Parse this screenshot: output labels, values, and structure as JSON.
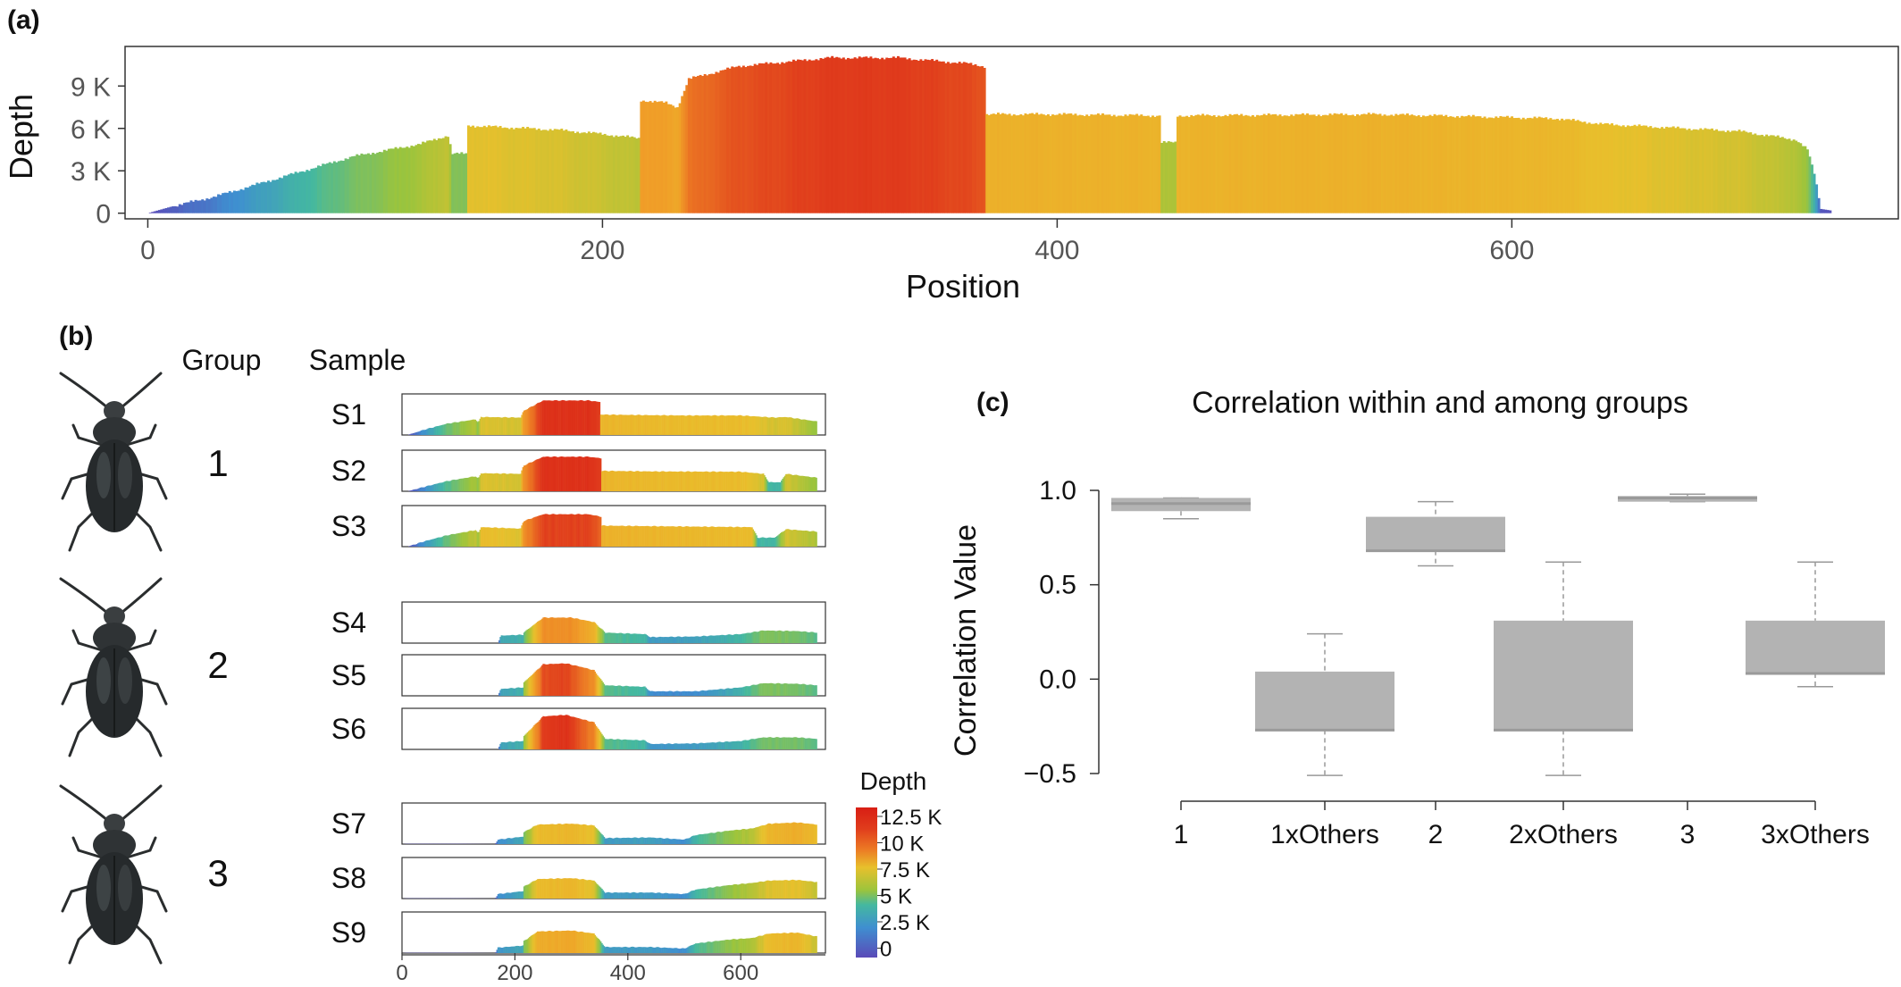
{
  "panel_labels": {
    "a": "(a)",
    "b": "(b)",
    "c": "(c)"
  },
  "panel_b": {
    "group_header": "Group",
    "sample_header": "Sample",
    "groups": [
      "1",
      "2",
      "3"
    ],
    "samples": [
      "S1",
      "S2",
      "S3",
      "S4",
      "S5",
      "S6",
      "S7",
      "S8",
      "S9"
    ],
    "legend_title": "Depth",
    "legend_ticks": [
      "12.5 K",
      "10 K",
      "7.5 K",
      "5 K",
      "2.5 K",
      "0"
    ],
    "x_ticks": [
      "0",
      "200",
      "400",
      "600"
    ]
  },
  "colors": {
    "scale": [
      "#5a4ab8",
      "#3f8fd0",
      "#44b8a0",
      "#9cc43c",
      "#e8c02c",
      "#f0a028",
      "#ec7a24",
      "#e03c1c",
      "#d81e14"
    ],
    "box_fill": "#b3b3b3",
    "axis": "#333333"
  },
  "chart_data": [
    {
      "type": "bar",
      "panel": "a",
      "xlabel": "Position",
      "ylabel": "Depth",
      "xlim": [
        -10,
        770
      ],
      "ylim": [
        -400,
        11800
      ],
      "x_ticks": [
        "0",
        "200",
        "400",
        "600"
      ],
      "y_ticks": [
        "0",
        "3 K",
        "6 K",
        "9 K"
      ],
      "color_scale_max": 12500,
      "profile_points": [
        [
          0,
          0
        ],
        [
          10,
          450
        ],
        [
          30,
          1200
        ],
        [
          60,
          2600
        ],
        [
          90,
          4000
        ],
        [
          120,
          4900
        ],
        [
          132,
          5500
        ],
        [
          134,
          4200
        ],
        [
          140,
          4200
        ],
        [
          141,
          6200
        ],
        [
          180,
          5900
        ],
        [
          200,
          5600
        ],
        [
          216,
          5300
        ],
        [
          217,
          8000
        ],
        [
          228,
          7800
        ],
        [
          233,
          7500
        ],
        [
          238,
          9500
        ],
        [
          260,
          10400
        ],
        [
          300,
          11000
        ],
        [
          330,
          11000
        ],
        [
          360,
          10600
        ],
        [
          368,
          10400
        ],
        [
          369,
          7000
        ],
        [
          400,
          7000
        ],
        [
          445,
          6900
        ],
        [
          446,
          5000
        ],
        [
          452,
          5000
        ],
        [
          453,
          6900
        ],
        [
          540,
          7000
        ],
        [
          620,
          6700
        ],
        [
          640,
          6300
        ],
        [
          700,
          5800
        ],
        [
          725,
          5200
        ],
        [
          730,
          4500
        ],
        [
          733,
          2800
        ],
        [
          736,
          300
        ],
        [
          740,
          200
        ]
      ]
    },
    {
      "type": "bar",
      "panel": "b",
      "xlim": [
        0,
        750
      ],
      "ymax": 12500,
      "x_ticks": [
        "0",
        "200",
        "400",
        "600"
      ],
      "series": [
        {
          "sample": "S1",
          "profile_points": [
            [
              10,
              0
            ],
            [
              40,
              1800
            ],
            [
              80,
              3800
            ],
            [
              130,
              5200
            ],
            [
              135,
              4200
            ],
            [
              140,
              6000
            ],
            [
              210,
              5800
            ],
            [
              215,
              8000
            ],
            [
              250,
              11500
            ],
            [
              330,
              11500
            ],
            [
              350,
              11000
            ],
            [
              352,
              6800
            ],
            [
              440,
              6600
            ],
            [
              500,
              6500
            ],
            [
              600,
              6500
            ],
            [
              660,
              5800
            ],
            [
              680,
              6000
            ],
            [
              735,
              4500
            ]
          ]
        },
        {
          "sample": "S2",
          "profile_points": [
            [
              10,
              0
            ],
            [
              40,
              1500
            ],
            [
              80,
              3400
            ],
            [
              130,
              5000
            ],
            [
              135,
              4200
            ],
            [
              140,
              6000
            ],
            [
              210,
              5800
            ],
            [
              215,
              8500
            ],
            [
              250,
              11500
            ],
            [
              330,
              11500
            ],
            [
              352,
              11000
            ],
            [
              353,
              6800
            ],
            [
              450,
              6600
            ],
            [
              600,
              6500
            ],
            [
              640,
              5800
            ],
            [
              650,
              3000
            ],
            [
              670,
              3000
            ],
            [
              680,
              5800
            ],
            [
              735,
              4500
            ]
          ]
        },
        {
          "sample": "S3",
          "profile_points": [
            [
              10,
              0
            ],
            [
              40,
              1800
            ],
            [
              80,
              3800
            ],
            [
              130,
              5500
            ],
            [
              135,
              4500
            ],
            [
              140,
              6500
            ],
            [
              210,
              6000
            ],
            [
              215,
              8500
            ],
            [
              250,
              10800
            ],
            [
              330,
              10800
            ],
            [
              352,
              10000
            ],
            [
              353,
              7000
            ],
            [
              450,
              6800
            ],
            [
              620,
              6500
            ],
            [
              630,
              3000
            ],
            [
              660,
              3000
            ],
            [
              680,
              5800
            ],
            [
              735,
              5000
            ]
          ]
        },
        {
          "sample": "S4",
          "profile_points": [
            [
              170,
              0
            ],
            [
              175,
              2500
            ],
            [
              215,
              2800
            ],
            [
              216,
              3600
            ],
            [
              250,
              8500
            ],
            [
              300,
              8500
            ],
            [
              340,
              7000
            ],
            [
              360,
              3500
            ],
            [
              400,
              3200
            ],
            [
              430,
              3000
            ],
            [
              440,
              2000
            ],
            [
              520,
              2200
            ],
            [
              600,
              3000
            ],
            [
              640,
              4200
            ],
            [
              700,
              4000
            ],
            [
              735,
              3500
            ]
          ]
        },
        {
          "sample": "S5",
          "profile_points": [
            [
              170,
              0
            ],
            [
              175,
              2300
            ],
            [
              215,
              2800
            ],
            [
              216,
              4500
            ],
            [
              250,
              10500
            ],
            [
              290,
              10800
            ],
            [
              320,
              9500
            ],
            [
              340,
              8500
            ],
            [
              360,
              3500
            ],
            [
              430,
              3000
            ],
            [
              440,
              1500
            ],
            [
              520,
              1500
            ],
            [
              600,
              2800
            ],
            [
              640,
              4200
            ],
            [
              700,
              4000
            ],
            [
              735,
              3500
            ]
          ]
        },
        {
          "sample": "S6",
          "profile_points": [
            [
              170,
              0
            ],
            [
              175,
              2300
            ],
            [
              215,
              2800
            ],
            [
              216,
              4500
            ],
            [
              250,
              11000
            ],
            [
              290,
              11500
            ],
            [
              320,
              10000
            ],
            [
              340,
              9000
            ],
            [
              360,
              3500
            ],
            [
              430,
              3000
            ],
            [
              440,
              1800
            ],
            [
              520,
              2000
            ],
            [
              600,
              2800
            ],
            [
              640,
              4000
            ],
            [
              700,
              4000
            ],
            [
              735,
              3500
            ]
          ]
        },
        {
          "sample": "S7",
          "profile_points": [
            [
              0,
              0
            ],
            [
              10,
              80
            ],
            [
              100,
              80
            ],
            [
              165,
              0
            ],
            [
              170,
              1500
            ],
            [
              215,
              2500
            ],
            [
              216,
              4000
            ],
            [
              240,
              6500
            ],
            [
              300,
              6800
            ],
            [
              340,
              6200
            ],
            [
              360,
              2000
            ],
            [
              440,
              2200
            ],
            [
              500,
              1500
            ],
            [
              520,
              3000
            ],
            [
              580,
              4500
            ],
            [
              620,
              5200
            ],
            [
              650,
              6800
            ],
            [
              700,
              7200
            ],
            [
              735,
              6500
            ]
          ]
        },
        {
          "sample": "S8",
          "profile_points": [
            [
              0,
              0
            ],
            [
              10,
              80
            ],
            [
              100,
              80
            ],
            [
              165,
              0
            ],
            [
              170,
              1500
            ],
            [
              215,
              2500
            ],
            [
              216,
              4000
            ],
            [
              240,
              6500
            ],
            [
              300,
              6800
            ],
            [
              340,
              6000
            ],
            [
              360,
              2000
            ],
            [
              440,
              2000
            ],
            [
              500,
              1500
            ],
            [
              520,
              3000
            ],
            [
              580,
              4500
            ],
            [
              620,
              5200
            ],
            [
              650,
              6000
            ],
            [
              700,
              6200
            ],
            [
              735,
              5500
            ]
          ]
        },
        {
          "sample": "S9",
          "profile_points": [
            [
              0,
              0
            ],
            [
              10,
              80
            ],
            [
              100,
              80
            ],
            [
              165,
              0
            ],
            [
              170,
              1800
            ],
            [
              215,
              2500
            ],
            [
              216,
              4000
            ],
            [
              240,
              7200
            ],
            [
              300,
              7500
            ],
            [
              340,
              6500
            ],
            [
              360,
              2000
            ],
            [
              440,
              2000
            ],
            [
              500,
              1500
            ],
            [
              520,
              3200
            ],
            [
              580,
              4500
            ],
            [
              620,
              5000
            ],
            [
              650,
              6500
            ],
            [
              700,
              6800
            ],
            [
              735,
              5500
            ]
          ]
        }
      ]
    },
    {
      "type": "box",
      "panel": "c",
      "title": "Correlation within and among groups",
      "ylabel": "Correlation Value",
      "ylim": [
        -0.5,
        1.0
      ],
      "y_ticks": [
        "1.0",
        "0.5",
        "0.0",
        "−0.5"
      ],
      "categories": [
        "1",
        "1xOthers",
        "2",
        "2xOthers",
        "3",
        "3xOthers"
      ],
      "boxes": [
        {
          "category": "1",
          "whisker_low": 0.85,
          "q1": 0.89,
          "median": 0.93,
          "q3": 0.96,
          "whisker_high": 0.96
        },
        {
          "category": "1xOthers",
          "whisker_low": -0.51,
          "q1": -0.27,
          "median": -0.27,
          "q3": 0.04,
          "whisker_high": 0.24
        },
        {
          "category": "2",
          "whisker_low": 0.6,
          "q1": 0.68,
          "median": 0.68,
          "q3": 0.86,
          "whisker_high": 0.94
        },
        {
          "category": "2xOthers",
          "whisker_low": -0.51,
          "q1": -0.27,
          "median": -0.27,
          "q3": 0.31,
          "whisker_high": 0.62
        },
        {
          "category": "3",
          "whisker_low": 0.94,
          "q1": 0.94,
          "median": 0.96,
          "q3": 0.97,
          "whisker_high": 0.98
        },
        {
          "category": "3xOthers",
          "whisker_low": -0.04,
          "q1": 0.03,
          "median": 0.03,
          "q3": 0.31,
          "whisker_high": 0.62
        }
      ]
    }
  ]
}
